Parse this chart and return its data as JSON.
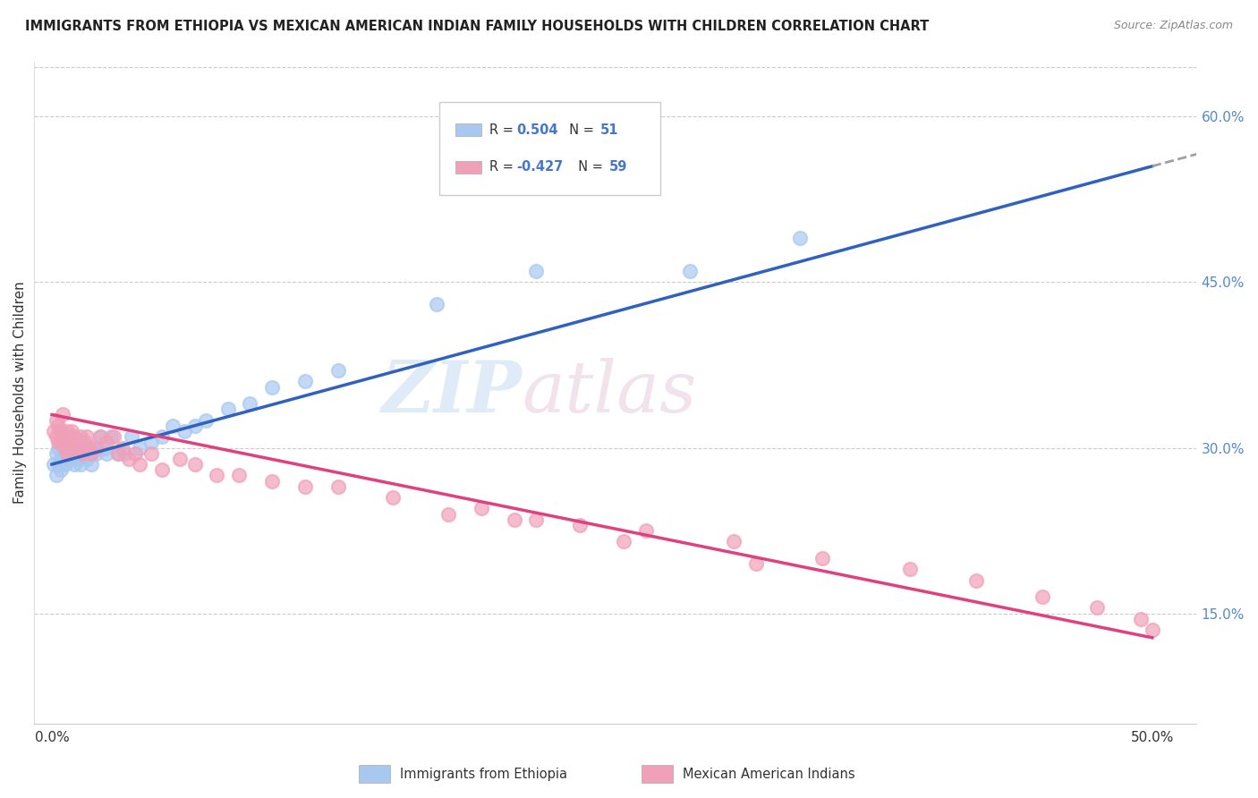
{
  "title": "IMMIGRANTS FROM ETHIOPIA VS MEXICAN AMERICAN INDIAN FAMILY HOUSEHOLDS WITH CHILDREN CORRELATION CHART",
  "source": "Source: ZipAtlas.com",
  "ylabel": "Family Households with Children",
  "xlim": [
    0.0,
    0.5
  ],
  "ylim": [
    0.05,
    0.65
  ],
  "x_ticks": [
    0.0,
    0.1,
    0.2,
    0.3,
    0.4,
    0.5
  ],
  "x_tick_labels": [
    "0.0%",
    "",
    "",
    "",
    "",
    "50.0%"
  ],
  "y_ticks_right": [
    0.15,
    0.3,
    0.45,
    0.6
  ],
  "y_tick_labels_right": [
    "15.0%",
    "30.0%",
    "45.0%",
    "60.0%"
  ],
  "color_blue": "#a8c8f0",
  "color_pink": "#f0a0b8",
  "color_blue_line": "#3060c0",
  "color_pink_line": "#e04080",
  "color_dashed": "#a0a0a0",
  "blue_line_x0": 0.0,
  "blue_line_y0": 0.285,
  "blue_line_x1": 0.5,
  "blue_line_y1": 0.555,
  "pink_line_x0": 0.0,
  "pink_line_y0": 0.33,
  "pink_line_x1": 0.5,
  "pink_line_y1": 0.128,
  "blue_scatter_x": [
    0.001,
    0.002,
    0.002,
    0.003,
    0.003,
    0.004,
    0.004,
    0.005,
    0.005,
    0.006,
    0.006,
    0.007,
    0.007,
    0.008,
    0.008,
    0.009,
    0.01,
    0.01,
    0.011,
    0.012,
    0.013,
    0.014,
    0.015,
    0.016,
    0.017,
    0.018,
    0.019,
    0.02,
    0.022,
    0.024,
    0.025,
    0.027,
    0.03,
    0.033,
    0.036,
    0.04,
    0.045,
    0.05,
    0.055,
    0.06,
    0.065,
    0.07,
    0.08,
    0.09,
    0.1,
    0.115,
    0.13,
    0.175,
    0.22,
    0.29,
    0.34
  ],
  "blue_scatter_y": [
    0.285,
    0.295,
    0.275,
    0.3,
    0.285,
    0.29,
    0.28,
    0.31,
    0.295,
    0.3,
    0.285,
    0.305,
    0.295,
    0.3,
    0.29,
    0.295,
    0.285,
    0.3,
    0.295,
    0.29,
    0.285,
    0.295,
    0.3,
    0.29,
    0.295,
    0.285,
    0.3,
    0.295,
    0.31,
    0.3,
    0.295,
    0.31,
    0.295,
    0.295,
    0.31,
    0.3,
    0.305,
    0.31,
    0.32,
    0.315,
    0.32,
    0.325,
    0.335,
    0.34,
    0.355,
    0.36,
    0.37,
    0.43,
    0.46,
    0.46,
    0.49
  ],
  "pink_scatter_x": [
    0.001,
    0.002,
    0.002,
    0.003,
    0.003,
    0.004,
    0.004,
    0.005,
    0.006,
    0.006,
    0.007,
    0.007,
    0.008,
    0.008,
    0.009,
    0.01,
    0.011,
    0.012,
    0.013,
    0.014,
    0.015,
    0.016,
    0.017,
    0.018,
    0.02,
    0.022,
    0.025,
    0.028,
    0.03,
    0.032,
    0.035,
    0.038,
    0.04,
    0.045,
    0.05,
    0.058,
    0.065,
    0.075,
    0.085,
    0.1,
    0.115,
    0.13,
    0.155,
    0.18,
    0.21,
    0.24,
    0.27,
    0.31,
    0.35,
    0.39,
    0.42,
    0.45,
    0.475,
    0.495,
    0.5,
    0.195,
    0.22,
    0.26,
    0.32
  ],
  "pink_scatter_y": [
    0.315,
    0.325,
    0.31,
    0.32,
    0.305,
    0.315,
    0.305,
    0.33,
    0.31,
    0.3,
    0.315,
    0.295,
    0.31,
    0.3,
    0.315,
    0.31,
    0.305,
    0.3,
    0.31,
    0.295,
    0.305,
    0.31,
    0.3,
    0.295,
    0.3,
    0.31,
    0.305,
    0.31,
    0.295,
    0.3,
    0.29,
    0.295,
    0.285,
    0.295,
    0.28,
    0.29,
    0.285,
    0.275,
    0.275,
    0.27,
    0.265,
    0.265,
    0.255,
    0.24,
    0.235,
    0.23,
    0.225,
    0.215,
    0.2,
    0.19,
    0.18,
    0.165,
    0.155,
    0.145,
    0.135,
    0.245,
    0.235,
    0.215,
    0.195
  ],
  "watermark_zip": "ZIP",
  "watermark_atlas": "atlas"
}
